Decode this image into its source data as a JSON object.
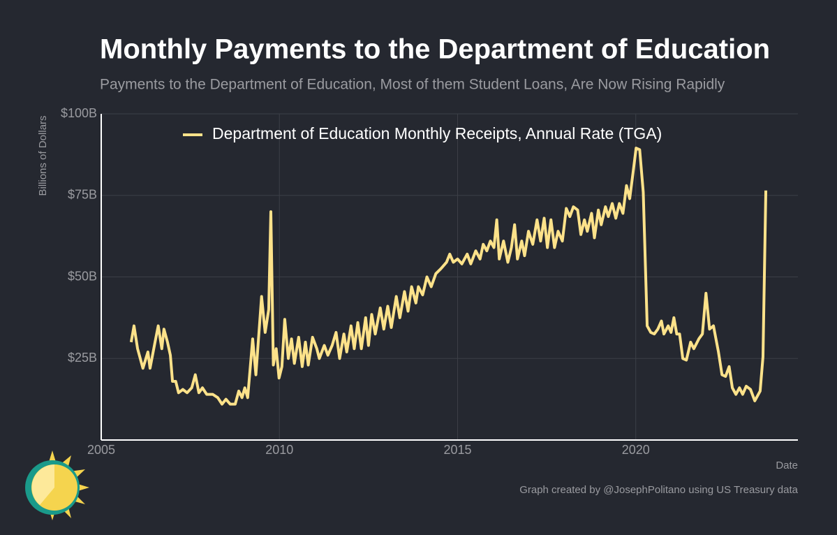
{
  "chart_data": {
    "type": "line",
    "title": "Monthly Payments to the Department of Education",
    "subtitle": "Payments to the Department of Education, Most of them Student Loans, Are Now Rising Rapidly",
    "y_label": "Billions of Dollars",
    "x_label": "Date",
    "caption": "Graph created by @JosephPolitano using US Treasury data",
    "legend": "top",
    "grid": true,
    "xlim": [
      2005,
      2024.55
    ],
    "xticks": [
      2005,
      2010,
      2015,
      2020
    ],
    "ylim": [
      0,
      100
    ],
    "yticks": [
      {
        "value": 25,
        "label": "$25B"
      },
      {
        "value": 50,
        "label": "$50B"
      },
      {
        "value": 75,
        "label": "$75B"
      },
      {
        "value": 100,
        "label": "$100B"
      }
    ],
    "x": [
      2005.84,
      2005.92,
      2006.02,
      2006.17,
      2006.31,
      2006.37,
      2006.51,
      2006.6,
      2006.7,
      2006.76,
      2006.86,
      2006.94,
      2007.0,
      2007.09,
      2007.17,
      2007.29,
      2007.41,
      2007.54,
      2007.64,
      2007.74,
      2007.84,
      2007.96,
      2008.13,
      2008.27,
      2008.39,
      2008.5,
      2008.62,
      2008.76,
      2008.86,
      2008.95,
      2009.03,
      2009.11,
      2009.25,
      2009.34,
      2009.5,
      2009.6,
      2009.7,
      2009.76,
      2009.83,
      2009.91,
      2009.99,
      2010.07,
      2010.15,
      2010.25,
      2010.34,
      2010.42,
      2010.54,
      2010.64,
      2010.73,
      2010.81,
      2010.93,
      2011.05,
      2011.12,
      2011.26,
      2011.36,
      2011.48,
      2011.59,
      2011.69,
      2011.81,
      2011.89,
      2012.01,
      2012.1,
      2012.2,
      2012.3,
      2012.42,
      2012.5,
      2012.59,
      2012.69,
      2012.83,
      2012.93,
      2013.04,
      2013.14,
      2013.28,
      2013.38,
      2013.51,
      2013.61,
      2013.71,
      2013.83,
      2013.9,
      2014.02,
      2014.14,
      2014.26,
      2014.39,
      2014.53,
      2014.69,
      2014.78,
      2014.88,
      2015.0,
      2015.12,
      2015.27,
      2015.37,
      2015.51,
      2015.63,
      2015.72,
      2015.82,
      2015.92,
      2016.02,
      2016.1,
      2016.17,
      2016.29,
      2016.41,
      2016.51,
      2016.6,
      2016.68,
      2016.8,
      2016.88,
      2016.99,
      2017.11,
      2017.23,
      2017.33,
      2017.43,
      2017.52,
      2017.62,
      2017.72,
      2017.82,
      2017.94,
      2018.05,
      2018.15,
      2018.25,
      2018.37,
      2018.46,
      2018.56,
      2018.64,
      2018.76,
      2018.84,
      2018.95,
      2019.03,
      2019.15,
      2019.23,
      2019.34,
      2019.44,
      2019.54,
      2019.64,
      2019.74,
      2019.83,
      2019.93,
      2020.01,
      2020.11,
      2020.21,
      2020.32,
      2020.42,
      2020.52,
      2020.62,
      2020.72,
      2020.79,
      2020.91,
      2020.99,
      2021.07,
      2021.15,
      2021.23,
      2021.32,
      2021.42,
      2021.54,
      2021.63,
      2021.77,
      2021.87,
      2021.97,
      2022.07,
      2022.18,
      2022.32,
      2022.42,
      2022.52,
      2022.62,
      2022.71,
      2022.81,
      2022.91,
      2023.0,
      2023.1,
      2023.22,
      2023.34,
      2023.49,
      2023.57,
      2023.65
    ],
    "series": [
      {
        "name": "Department of Education Monthly Receipts, Annual Rate (TGA)",
        "color": "#fde28a",
        "values": [
          30,
          35,
          28,
          22,
          27,
          22,
          30,
          35,
          28,
          34,
          30,
          26,
          18,
          18,
          14.5,
          15.5,
          14.5,
          16,
          20,
          14.5,
          16,
          14,
          14,
          13,
          11,
          12.5,
          11,
          11,
          15,
          13,
          16,
          13,
          31,
          20,
          44,
          33,
          40,
          70,
          23,
          28,
          19,
          22.5,
          37,
          25,
          31,
          23.5,
          31.5,
          22.5,
          30,
          23,
          31.5,
          28,
          25,
          29,
          26,
          29,
          33,
          25,
          32.5,
          27,
          35,
          28,
          36,
          28,
          37.5,
          29,
          38.5,
          32.5,
          40.5,
          34,
          41,
          34.5,
          44,
          37.5,
          45.5,
          39.5,
          47,
          42,
          47,
          44.5,
          50,
          47,
          51,
          52.5,
          54.5,
          57,
          54.5,
          55.5,
          54,
          57,
          54,
          58,
          55.5,
          60,
          58,
          61,
          59,
          67.5,
          55.5,
          61,
          54.5,
          59,
          66,
          55.5,
          61,
          56.5,
          64,
          60,
          67.5,
          61,
          68,
          59,
          67.5,
          59,
          64,
          61,
          71,
          68.5,
          71.5,
          70.5,
          63,
          67.5,
          64,
          69.5,
          62,
          70.5,
          66,
          71.5,
          68.5,
          72.5,
          68,
          72.5,
          69.5,
          78,
          74,
          82.5,
          89.5,
          89,
          76,
          35,
          33,
          32.5,
          34,
          36.5,
          32.5,
          35,
          33,
          37.5,
          32.5,
          32.5,
          25,
          24.5,
          30,
          28,
          31,
          32.5,
          45,
          34,
          35,
          27,
          20,
          19.5,
          22.5,
          16,
          14,
          16,
          14,
          16.5,
          15.5,
          12,
          15,
          25.5,
          76.5
        ]
      }
    ]
  }
}
